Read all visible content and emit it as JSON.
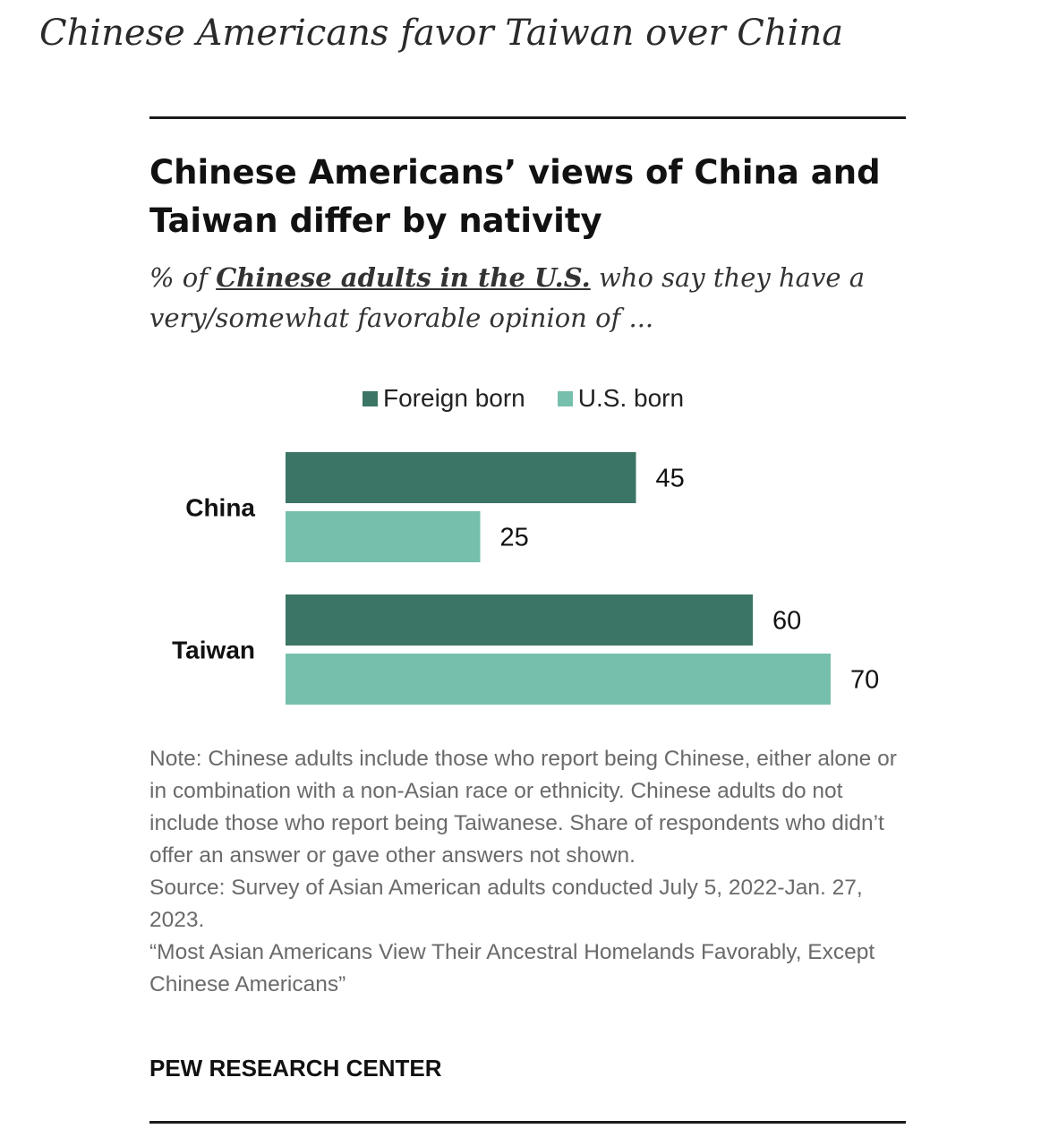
{
  "headline": "Chinese Americans favor Taiwan over China",
  "title": "Chinese Americans’ views of China and Taiwan differ by nativity",
  "subtitle": {
    "prefix": "% of ",
    "underlined": "Chinese adults in the U.S.",
    "suffix": " who say they have a very/somewhat favorable opinion of ..."
  },
  "colors": {
    "foreign_born": "#3a7565",
    "us_born": "#76bfac"
  },
  "chart_data": {
    "type": "bar",
    "orientation": "horizontal",
    "categories": [
      "China",
      "Taiwan"
    ],
    "series": [
      {
        "name": "Foreign born",
        "values": [
          45,
          60
        ]
      },
      {
        "name": "U.S. born",
        "values": [
          25,
          70
        ]
      }
    ],
    "xlim": [
      0,
      70
    ],
    "grid": false,
    "legend": "top"
  },
  "notes": {
    "note": "Note: Chinese adults include those who report being Chinese, either alone or in combination with a non-Asian race or ethnicity. Chinese adults do not include those who report being Taiwanese. Share of respondents who didn’t offer an answer or gave other answers not shown.",
    "source": "Source: Survey of Asian American adults conducted July 5, 2022-Jan. 27, 2023.",
    "report": "“Most Asian Americans View Their Ancestral Homelands Favorably, Except Chinese Americans”"
  },
  "org": "PEW RESEARCH CENTER"
}
